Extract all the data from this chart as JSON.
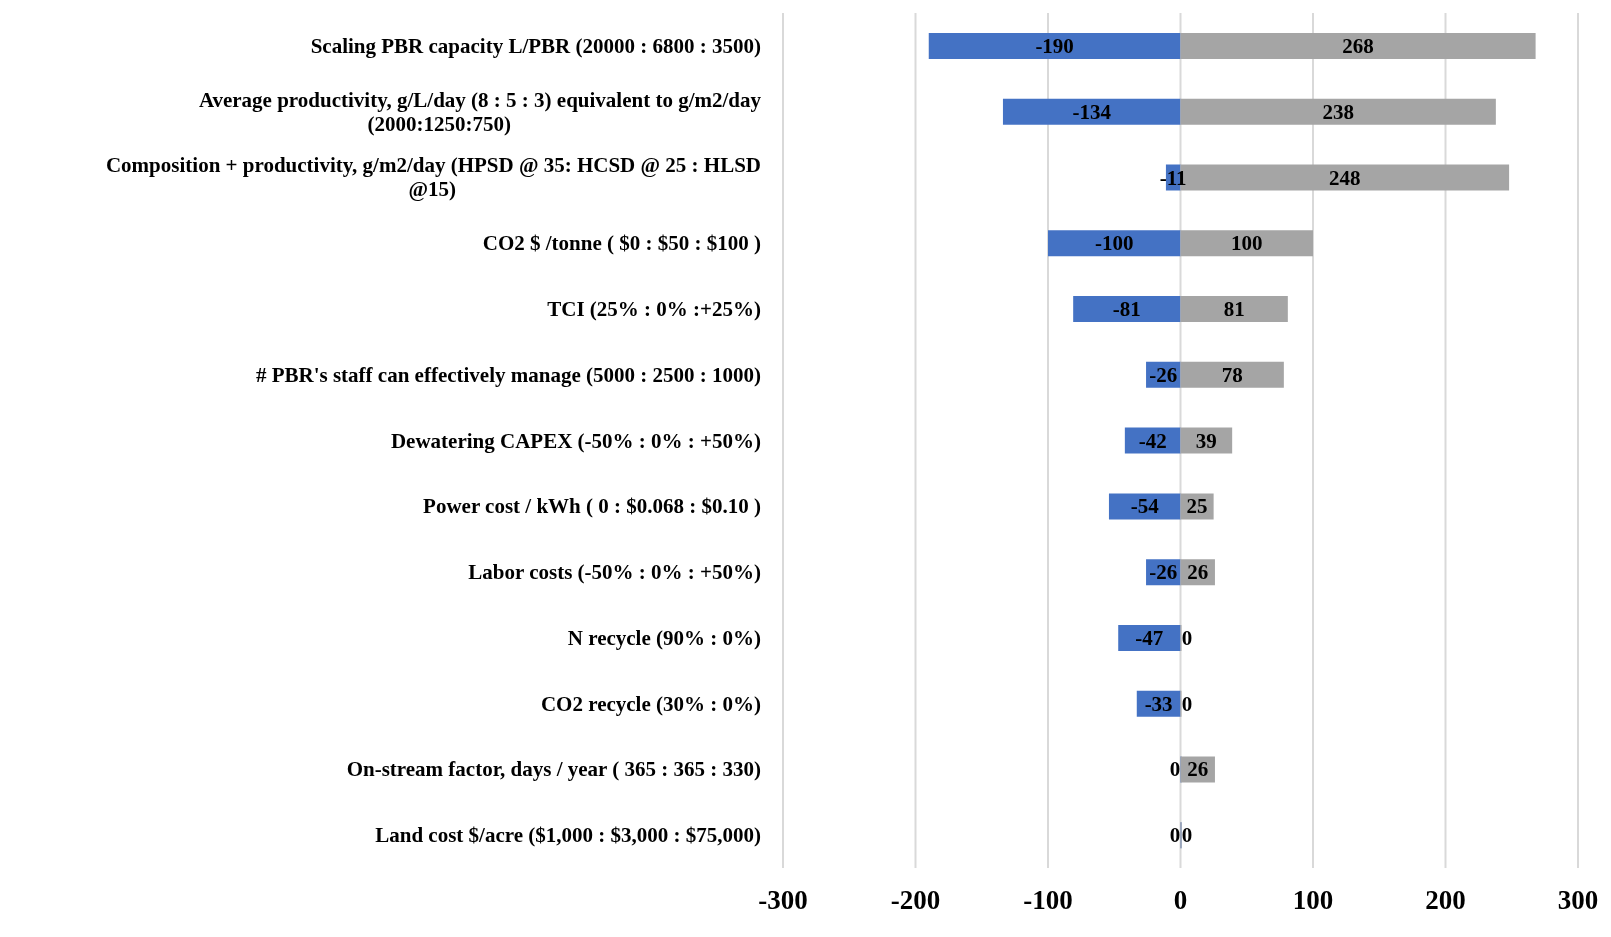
{
  "chart_data": {
    "type": "bar",
    "orientation": "horizontal",
    "stacked": true,
    "data_labels": true,
    "grid": "x",
    "categories": [
      "Scaling PBR capacity  L/PBR (20000 : 6800 : 3500)",
      "Average productivity, g/L/day (8 : 5 : 3)  equivalent to g/m2/day (2000:1250:750)",
      "Composition + productivity, g/m2/day (HPSD @ 35: HCSD @ 25 : HLSD @15)",
      "CO2 $ /tonne ( $0 : $50 : $100 )",
      "TCI (25% : 0% :+25%)",
      "# PBR's staff can effectively manage (5000 : 2500 : 1000)",
      "Dewatering CAPEX (-50% : 0% : +50%)",
      "Power cost / kWh ( 0 : $0.068 : $0.10 )",
      "Labor costs (-50% : 0% : +50%)",
      "N recycle (90% : 0%)",
      "CO2 recycle (30% : 0%)",
      "On-stream factor, days / year ( 365 : 365 : 330)",
      "Land cost $/acre ($1,000 : $3,000 : $75,000)"
    ],
    "series": [
      {
        "color": "#4472c4",
        "values": [
          -190,
          -134,
          -11,
          -100,
          -81,
          -26,
          -42,
          -54,
          -26,
          -47,
          -33,
          0,
          0
        ]
      },
      {
        "color": "#a5a5a5",
        "values": [
          268,
          238,
          248,
          100,
          81,
          78,
          39,
          25,
          26,
          0,
          0,
          26,
          0
        ]
      }
    ],
    "xlim": [
      -300,
      300
    ],
    "xticks": [
      -300,
      -200,
      -100,
      0,
      100,
      200,
      300
    ]
  }
}
